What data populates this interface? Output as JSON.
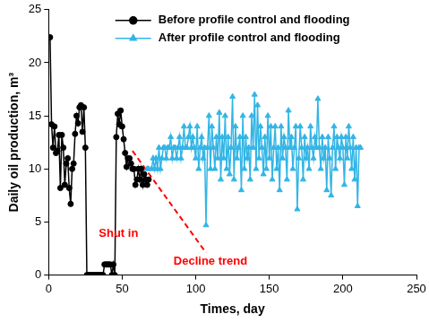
{
  "chart_data": {
    "type": "line",
    "x_label": "Times, day",
    "y_label": "Daily oil production, m³",
    "xlim": [
      0,
      250
    ],
    "xticks": [
      0,
      50,
      100,
      150,
      200,
      250
    ],
    "ylim": [
      0,
      25
    ],
    "yticks": [
      0,
      5,
      10,
      15,
      20,
      25
    ],
    "grid": false,
    "legend": "upper center",
    "series": [
      {
        "name": "Before profile control and flooding",
        "color": "#000000",
        "marker": "circle",
        "line_style": "solid",
        "x": [
          1,
          2,
          3,
          4,
          5,
          6,
          7,
          8,
          9,
          10,
          11,
          12,
          13,
          14,
          15,
          16,
          17,
          18,
          19,
          20,
          21,
          22,
          23,
          24,
          25,
          26,
          27,
          28,
          29,
          30,
          31,
          32,
          33,
          34,
          35,
          36,
          37,
          38,
          39,
          40,
          41,
          42,
          43,
          44,
          45,
          46,
          47,
          48,
          49,
          50,
          51,
          52,
          53,
          54,
          55,
          56,
          57,
          58,
          59,
          60,
          61,
          62,
          63,
          64,
          65,
          66,
          67,
          68
        ],
        "values": [
          22.4,
          14.2,
          12,
          14,
          11.5,
          11.7,
          13.2,
          8.2,
          13.2,
          12,
          8.5,
          10.5,
          11,
          8.2,
          6.7,
          10,
          10.5,
          13.3,
          15,
          14.3,
          15.8,
          16,
          13.5,
          15.8,
          12,
          0,
          0,
          0,
          0,
          0,
          0,
          0,
          0,
          0,
          0,
          0,
          0,
          1,
          1,
          1,
          1,
          1,
          0,
          1,
          0,
          13,
          15.2,
          14.2,
          15.5,
          14,
          12.8,
          11.5,
          10.2,
          11,
          11,
          10.5,
          10,
          10,
          8.5,
          9,
          10,
          9,
          10,
          8.5,
          9.5,
          9,
          8.5,
          9
        ]
      },
      {
        "name": "After profile control and flooding",
        "color": "#33b5e5",
        "marker": "triangle",
        "line_style": "solid",
        "x": [
          67,
          68,
          70,
          71,
          72,
          73,
          74,
          75,
          76,
          77,
          78,
          79,
          80,
          81,
          82,
          83,
          84,
          85,
          86,
          87,
          88,
          89,
          90,
          91,
          92,
          93,
          94,
          95,
          96,
          97,
          98,
          99,
          100,
          101,
          102,
          103,
          104,
          105,
          106,
          107,
          108,
          109,
          110,
          111,
          112,
          113,
          114,
          115,
          116,
          117,
          118,
          119,
          120,
          121,
          122,
          123,
          124,
          125,
          126,
          127,
          128,
          129,
          130,
          131,
          132,
          133,
          134,
          135,
          136,
          137,
          138,
          139,
          140,
          141,
          142,
          143,
          144,
          145,
          146,
          147,
          148,
          149,
          150,
          151,
          152,
          153,
          154,
          155,
          156,
          157,
          158,
          159,
          160,
          161,
          162,
          163,
          164,
          165,
          166,
          167,
          168,
          169,
          170,
          171,
          172,
          173,
          174,
          175,
          176,
          177,
          178,
          179,
          180,
          181,
          182,
          183,
          184,
          185,
          186,
          187,
          188,
          189,
          190,
          191,
          192,
          193,
          194,
          195,
          196,
          197,
          198,
          199,
          200,
          201,
          202,
          203,
          204,
          205,
          206,
          207,
          208,
          209,
          210,
          211,
          212
        ],
        "values": [
          10,
          10,
          10,
          11,
          10,
          11,
          10,
          12,
          10,
          11,
          12,
          12,
          11,
          12,
          12,
          13,
          11,
          12,
          12,
          11,
          12,
          13,
          11,
          12,
          14,
          12,
          12,
          13,
          14,
          12,
          13,
          12,
          11,
          14,
          10,
          12,
          13,
          11,
          12,
          4.7,
          12,
          15,
          10,
          14,
          12,
          10,
          13,
          11,
          15.3,
          9,
          13,
          11,
          15,
          10,
          13,
          9.5,
          12,
          16.8,
          9,
          14,
          11,
          12,
          13,
          8,
          15,
          10,
          13,
          11,
          12,
          9,
          15,
          12,
          17,
          10,
          16,
          11,
          14,
          12,
          9.5,
          13,
          10,
          15,
          11,
          14,
          9,
          12,
          14,
          10,
          12,
          8,
          14,
          11,
          13,
          12,
          9,
          15.5,
          12,
          13,
          10,
          12,
          14,
          6.2,
          11,
          14,
          12,
          9,
          13,
          11,
          12,
          10,
          14,
          12,
          11,
          13,
          12,
          16.6,
          12,
          10,
          13,
          11,
          12,
          8,
          13,
          11,
          7.5,
          12,
          14,
          10,
          13,
          12,
          11,
          13,
          12,
          8.5,
          13,
          11,
          14,
          12,
          10,
          13,
          9,
          12,
          6.5,
          12,
          12
        ]
      }
    ],
    "trend_line": {
      "x": [
        57,
        107
      ],
      "y": [
        11.7,
        2.1
      ],
      "color": "#ff0000",
      "line_style": "dashed"
    },
    "annotations": [
      {
        "text": "Shut in",
        "x": 47.5,
        "y": 3.9,
        "color": "#ff0000"
      },
      {
        "text": "Decline trend",
        "x": 110,
        "y": 1.3,
        "color": "#ff0000"
      }
    ]
  }
}
